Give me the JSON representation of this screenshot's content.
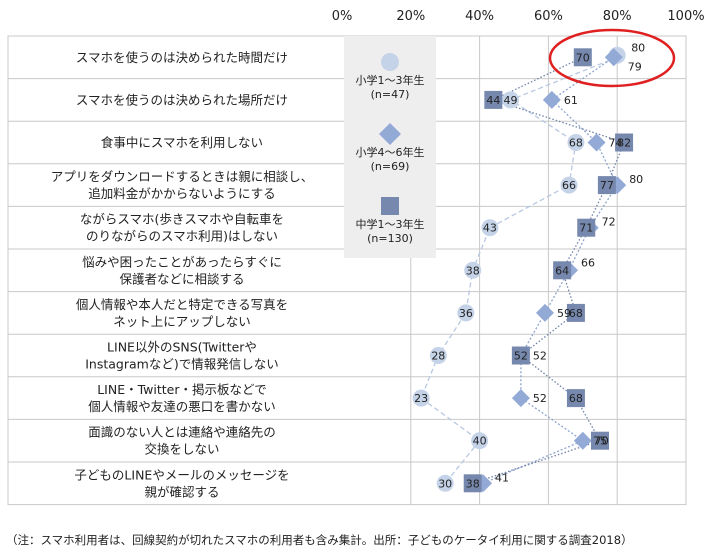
{
  "chart_data": {
    "type": "scatter",
    "xlim": [
      0,
      100
    ],
    "x_ticks": [
      "0%",
      "20%",
      "40%",
      "60%",
      "80%",
      "100%"
    ],
    "rows": [
      {
        "lines": [
          "スマホを使うのは決められた時間だけ"
        ],
        "values": [
          80,
          79,
          70
        ]
      },
      {
        "lines": [
          "スマホを使うのは決められた場所だけ"
        ],
        "values": [
          49,
          61,
          44
        ]
      },
      {
        "lines": [
          "食事中にスマホを利用しない"
        ],
        "values": [
          68,
          74,
          82
        ]
      },
      {
        "lines": [
          "アプリをダウンロードするときは親に相談し、",
          "追加料金がかからないようにする"
        ],
        "values": [
          66,
          80,
          77
        ]
      },
      {
        "lines": [
          "ながらスマホ(歩きスマホや自転車を",
          "のりながらのスマホ利用)はしない"
        ],
        "values": [
          43,
          72,
          71
        ]
      },
      {
        "lines": [
          "悩みや困ったことがあったらすぐに",
          "保護者などに相談する"
        ],
        "values": [
          38,
          66,
          64
        ]
      },
      {
        "lines": [
          "個人情報や本人だと特定できる写真を",
          "ネット上にアップしない"
        ],
        "values": [
          36,
          59,
          68
        ]
      },
      {
        "lines": [
          "LINE以外のSNS(Twitterや",
          "Instagramなど)で情報発信しない"
        ],
        "values": [
          28,
          52,
          52
        ]
      },
      {
        "lines": [
          "LINE・Twitter・掲示板などで",
          "個人情報や友達の悪口を書かない"
        ],
        "values": [
          23,
          52,
          68
        ]
      },
      {
        "lines": [
          "面識のない人とは連絡や連絡先の",
          "交換をしない"
        ],
        "values": [
          40,
          70,
          75
        ]
      },
      {
        "lines": [
          "子どものLINEやメールのメッセージを",
          "親が確認する"
        ],
        "values": [
          30,
          41,
          38
        ]
      }
    ],
    "series": [
      {
        "name_lines": [
          "小学1～3年生",
          "(n=47)"
        ],
        "marker": "circle",
        "color": "#c5d3e8"
      },
      {
        "name_lines": [
          "小学4～6年生",
          "(n=69)"
        ],
        "marker": "diamond",
        "color": "#93aad6"
      },
      {
        "name_lines": [
          "中学1～3年生",
          "(n=130)"
        ],
        "marker": "square",
        "color": "#7688ad"
      }
    ],
    "footnote": "（注：スマホ利用者は、回線契約が切れたスマホの利用者も含み集計。出所：子どものケータイ利用に関する調査2018）"
  },
  "colors": {
    "circle_fill": "#c5d3e8",
    "diamond_fill": "#93aad6",
    "square_fill": "#7688ad",
    "highlight_ellipse": "#e02020",
    "grid": "#c8c8c8",
    "legend_bg": "#eeeeee"
  }
}
